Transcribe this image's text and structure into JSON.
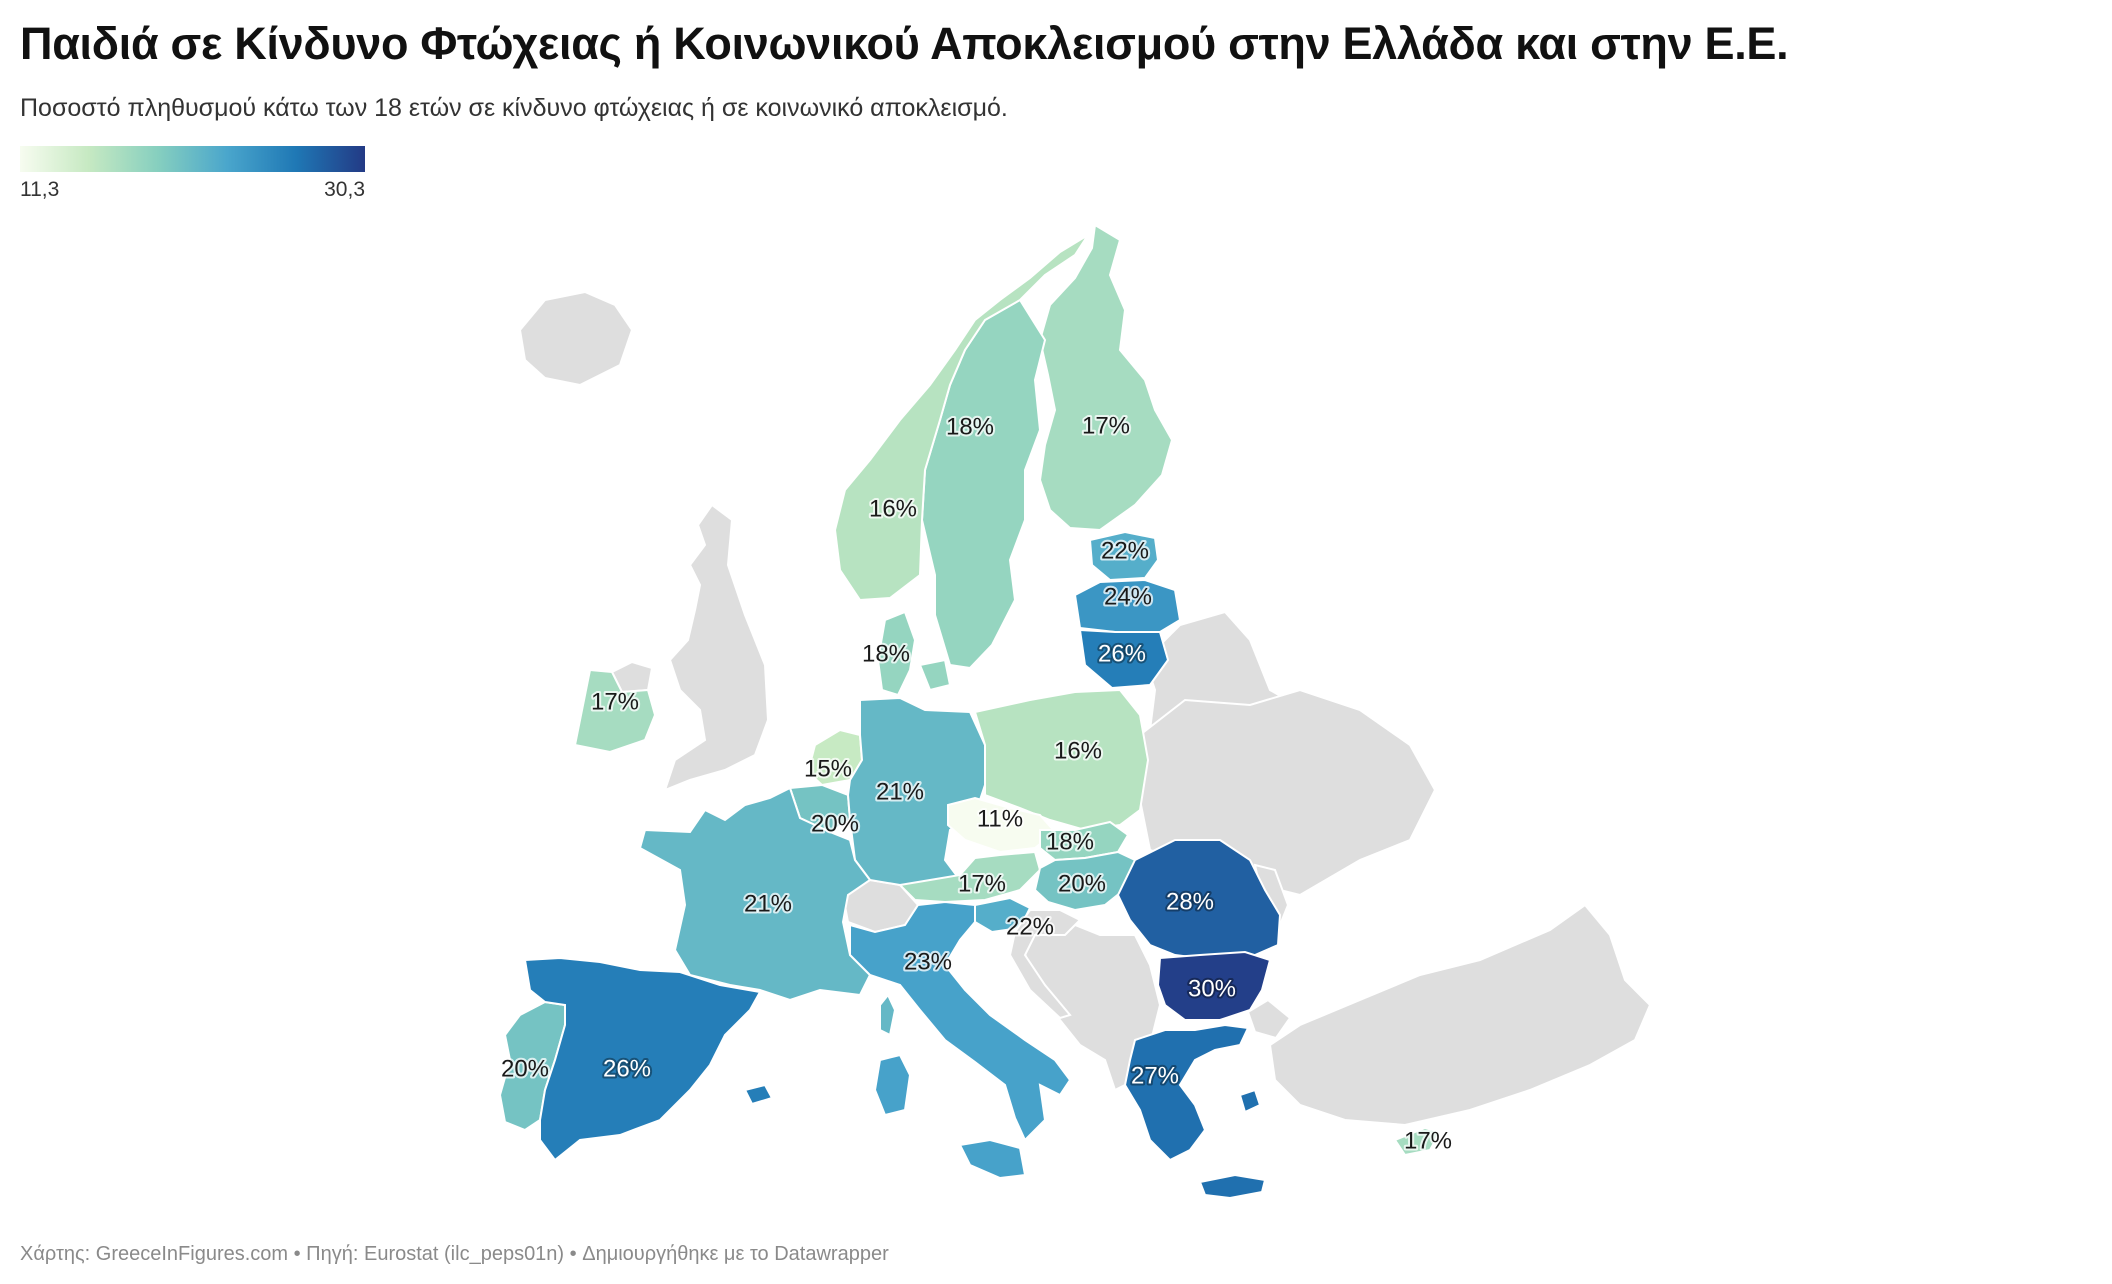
{
  "header": {
    "title": "Παιδιά σε Κίνδυνο Φτώχειας ή Κοινωνικού Αποκλεισμού στην Ελλάδα και στην Ε.Ε.",
    "subtitle": "Ποσοστό πληθυσμού κάτω των 18 ετών σε κίνδυνο φτώχειας ή σε κοινωνικό αποκλεισμό."
  },
  "legend": {
    "min_label": "11,3",
    "max_label": "30,3",
    "min": 11.3,
    "max": 30.3,
    "colors": [
      "#f7fcf0",
      "#c6e9c2",
      "#86cfbf",
      "#4aa6cc",
      "#1f78b5",
      "#233a85"
    ]
  },
  "map": {
    "no_data_color": "#dedede",
    "regions": [
      {
        "id": "finland",
        "value": 17,
        "label": "17%"
      },
      {
        "id": "sweden",
        "value": 18,
        "label": "18%"
      },
      {
        "id": "norway",
        "value": 16,
        "label": "16%"
      },
      {
        "id": "estonia",
        "value": 22,
        "label": "22%"
      },
      {
        "id": "latvia",
        "value": 24,
        "label": "24%"
      },
      {
        "id": "lithuania",
        "value": 26,
        "label": "26%"
      },
      {
        "id": "denmark",
        "value": 18,
        "label": "18%"
      },
      {
        "id": "ireland",
        "value": 17,
        "label": "17%"
      },
      {
        "id": "netherlands",
        "value": 15,
        "label": "15%"
      },
      {
        "id": "belgium",
        "value": 20,
        "label": "20%"
      },
      {
        "id": "germany",
        "value": 21,
        "label": "21%"
      },
      {
        "id": "poland",
        "value": 16,
        "label": "16%"
      },
      {
        "id": "czechia",
        "value": 11,
        "label": "11%"
      },
      {
        "id": "slovakia",
        "value": 18,
        "label": "18%"
      },
      {
        "id": "austria",
        "value": 17,
        "label": "17%"
      },
      {
        "id": "hungary",
        "value": 20,
        "label": "20%"
      },
      {
        "id": "slovenia",
        "value": 22,
        "label": "22%"
      },
      {
        "id": "france",
        "value": 21,
        "label": "21%"
      },
      {
        "id": "italy",
        "value": 23,
        "label": "23%"
      },
      {
        "id": "romania",
        "value": 28,
        "label": "28%"
      },
      {
        "id": "bulgaria",
        "value": 30,
        "label": "30%"
      },
      {
        "id": "greece",
        "value": 27,
        "label": "27%"
      },
      {
        "id": "portugal",
        "value": 20,
        "label": "20%"
      },
      {
        "id": "spain",
        "value": 26,
        "label": "26%"
      },
      {
        "id": "cyprus",
        "value": 17,
        "label": "17%"
      }
    ]
  },
  "footer": {
    "source": "Χάρτης: GreeceInFigures.com • Πηγή: Eurostat (ilc_peps01n) • Δημιουργήθηκε με το Datawrapper"
  }
}
